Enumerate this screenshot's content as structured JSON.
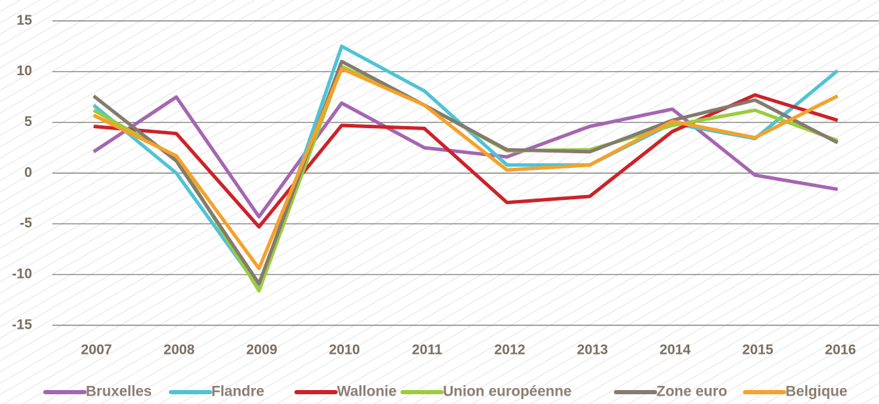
{
  "chart_data": {
    "type": "line",
    "categories": [
      "2007",
      "2008",
      "2009",
      "2010",
      "2011",
      "2012",
      "2013",
      "2014",
      "2015",
      "2016"
    ],
    "series": [
      {
        "name": "Bruxelles",
        "color": "#a466b0",
        "values": [
          2.1,
          7.5,
          -4.3,
          6.9,
          2.5,
          1.6,
          4.6,
          6.3,
          -0.2,
          -1.6
        ]
      },
      {
        "name": "Flandre",
        "color": "#4fc3d4",
        "values": [
          6.7,
          0,
          -11.3,
          12.5,
          8.1,
          0.8,
          0.8,
          4.9,
          3.4,
          10.1
        ]
      },
      {
        "name": "Wallonie",
        "color": "#cc2229",
        "values": [
          4.6,
          3.9,
          -5.3,
          4.7,
          4.4,
          -2.9,
          -2.3,
          4.1,
          7.7,
          5.2
        ]
      },
      {
        "name": "Union européenne",
        "color": "#9ccc3c",
        "values": [
          6.2,
          1.6,
          -11.6,
          10.5,
          6.7,
          2.2,
          2.3,
          4.7,
          6.2,
          3.2
        ]
      },
      {
        "name": "Zone euro",
        "color": "#857a6e",
        "values": [
          7.6,
          1.2,
          -10.9,
          11.0,
          6.7,
          2.3,
          2.1,
          5.2,
          7.2,
          3.0
        ]
      },
      {
        "name": "Belgique",
        "color": "#f5a12a",
        "values": [
          5.7,
          1.7,
          -9.4,
          10.3,
          6.7,
          0.3,
          0.8,
          5.1,
          3.5,
          7.6
        ]
      }
    ],
    "ylim": [
      -15,
      15
    ],
    "yticks": [
      -15,
      -10,
      -5,
      0,
      5,
      10,
      15
    ],
    "grid": true,
    "legend": "bottom"
  }
}
